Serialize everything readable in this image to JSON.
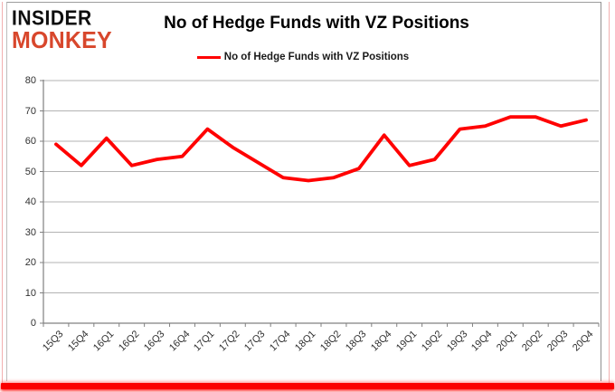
{
  "logo": {
    "line1": "INSIDER",
    "line2": "MONKEY",
    "color": "#d8472c"
  },
  "header": {
    "title": "No of Hedge Funds with VZ Positions"
  },
  "legend": {
    "label": "No of Hedge Funds with VZ Positions",
    "line_color": "#ff0000"
  },
  "chart_data": {
    "type": "line",
    "title": "No of Hedge Funds with VZ Positions",
    "categories": [
      "15Q3",
      "15Q4",
      "16Q1",
      "16Q2",
      "16Q3",
      "16Q4",
      "17Q1",
      "17Q2",
      "17Q3",
      "17Q4",
      "18Q1",
      "18Q2",
      "18Q3",
      "18Q4",
      "19Q1",
      "19Q2",
      "19Q3",
      "19Q4",
      "20Q1",
      "20Q2",
      "20Q3",
      "20Q4"
    ],
    "series": [
      {
        "name": "No of Hedge Funds with VZ Positions",
        "color": "#ff0000",
        "values": [
          59,
          52,
          61,
          52,
          54,
          55,
          64,
          58,
          53,
          48,
          47,
          48,
          51,
          62,
          52,
          54,
          64,
          65,
          68,
          68,
          65,
          67
        ]
      }
    ],
    "xlabel": "",
    "ylabel": "",
    "ylim": [
      0,
      80
    ],
    "ytick_step": 10,
    "grid": true,
    "legend_position": "top-center"
  },
  "colors": {
    "line": "#ff0000",
    "gridline": "#b3b3b3",
    "axis": "#808080",
    "tick_text": "#303030",
    "logo_red": "#d8472c",
    "frame_pink": "#f2b0b0",
    "bottom_bar_red": "#fb0000"
  }
}
